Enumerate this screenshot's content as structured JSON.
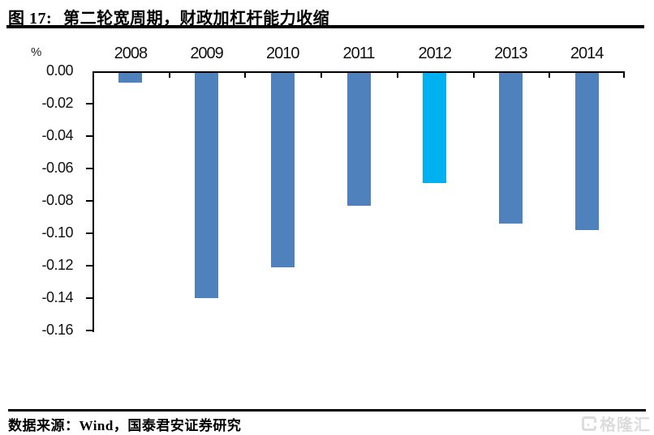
{
  "figure": {
    "number_label": "图 17:",
    "title": "第二轮宽周期，财政加杠杆能力收缩",
    "source": "数据来源：Wind，国泰君安证券研究",
    "watermark_text": "格隆汇"
  },
  "chart_data": {
    "type": "bar",
    "title": "第二轮宽周期，财政加杠杆能力收缩",
    "categories": [
      "2008",
      "2009",
      "2010",
      "2011",
      "2012",
      "2013",
      "2014"
    ],
    "values": [
      -0.006,
      -0.139,
      -0.12,
      -0.082,
      -0.068,
      -0.093,
      -0.097
    ],
    "unit_label": "%",
    "ylabel": "%",
    "xlabel": "",
    "ylim": [
      0,
      -0.16
    ],
    "ytick_step": -0.02,
    "yticks": [
      "0.00",
      "-0.02",
      "-0.04",
      "-0.06",
      "-0.08",
      "-0.10",
      "-0.12",
      "-0.14",
      "-0.16"
    ],
    "bar_color": "#4F81BD",
    "highlight_category": "2012",
    "highlight_index": 4,
    "highlight_color": "#00B0F0",
    "grid": false,
    "legend": false,
    "bars_direction": "down"
  }
}
